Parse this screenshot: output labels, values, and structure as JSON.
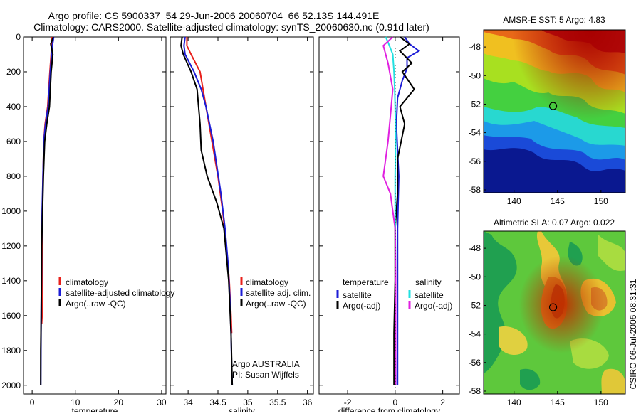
{
  "header": {
    "line1": "Argo profile: CS 5900337_54 29-Jun-2006 20060704_66 52.13S 144.491E",
    "line2": "Climatology: CARS2000. Satellite-adjusted climatology: synTS_20060630.nc (0.91d later)"
  },
  "footer_stamp": "CSIRO 06-Jul-2006 08:31:31",
  "colors": {
    "climatology": "#e8201b",
    "satellite": "#1c1cd6",
    "argo": "#000000",
    "sat_salinity": "#22e0e0",
    "argo_salinity": "#e020e0"
  },
  "chart_data": [
    {
      "id": "temperature",
      "type": "line",
      "xlabel": "temperature",
      "ylabel": "",
      "xlim": [
        -2,
        31
      ],
      "ylim": [
        0,
        2050
      ],
      "y_reversed": true,
      "xticks": [
        0,
        10,
        20,
        30
      ],
      "yticks": [
        0,
        200,
        400,
        600,
        800,
        1000,
        1200,
        1400,
        1600,
        1800,
        2000
      ],
      "legend": [
        "climatology",
        "satellite-adjusted climatology",
        "Argo(..raw -QC)"
      ],
      "series": [
        {
          "name": "climatology",
          "color": "#e8201b",
          "x": [
            4.6,
            4.4,
            4.1,
            3.6,
            3.0,
            2.7,
            2.5,
            2.4,
            2.3,
            2.3,
            2.2
          ],
          "y": [
            0,
            100,
            200,
            400,
            500,
            600,
            800,
            1000,
            1200,
            1600,
            1650
          ]
        },
        {
          "name": "satellite-adjusted climatology",
          "color": "#1c1cd6",
          "x": [
            5.0,
            4.7,
            4.5,
            4.2,
            3.7,
            3.1,
            2.7,
            2.5,
            2.3,
            2.2,
            2.1,
            2.05,
            2.0
          ],
          "y": [
            0,
            50,
            100,
            200,
            400,
            500,
            600,
            800,
            1000,
            1200,
            1600,
            1800,
            2000
          ]
        },
        {
          "name": "Argo(..raw -QC)",
          "color": "#000000",
          "x": [
            4.9,
            4.3,
            4.8,
            4.4,
            4.0,
            3.4,
            2.9,
            2.6,
            2.4,
            2.2,
            2.1,
            2.0,
            2.0
          ],
          "y": [
            0,
            40,
            100,
            200,
            400,
            500,
            600,
            800,
            1000,
            1200,
            1600,
            1800,
            2000
          ]
        }
      ]
    },
    {
      "id": "salinity",
      "type": "line",
      "xlabel": "salinity",
      "ylabel": "",
      "xlim": [
        33.7,
        36.1
      ],
      "ylim": [
        0,
        2050
      ],
      "y_reversed": true,
      "xticks": [
        34,
        34.5,
        35,
        35.5,
        36
      ],
      "legend": [
        "climatology",
        "satellite adj. clim.",
        "Argo(..raw -QC)"
      ],
      "annotations": [
        "Argo AUSTRALIA",
        "PI: Susan Wijffels"
      ],
      "series": [
        {
          "name": "climatology",
          "color": "#e8201b",
          "x": [
            33.98,
            33.98,
            34.05,
            34.2,
            34.3,
            34.4,
            34.5,
            34.58,
            34.64,
            34.69,
            34.72,
            34.73
          ],
          "y": [
            0,
            50,
            100,
            200,
            400,
            600,
            800,
            1000,
            1200,
            1400,
            1600,
            1700
          ]
        },
        {
          "name": "satellite adj. clim.",
          "color": "#1c1cd6",
          "x": [
            33.95,
            33.93,
            33.95,
            34.1,
            34.22,
            34.3,
            34.42,
            34.55,
            34.62,
            34.67,
            34.7,
            34.72,
            34.73,
            34.74
          ],
          "y": [
            0,
            50,
            100,
            200,
            300,
            400,
            600,
            900,
            1100,
            1300,
            1500,
            1700,
            1900,
            2000
          ]
        },
        {
          "name": "Argo(..raw -QC)",
          "color": "#000000",
          "x": [
            33.9,
            33.88,
            33.92,
            34.05,
            34.15,
            34.2,
            34.22,
            34.32,
            34.48,
            34.6,
            34.68,
            34.72,
            34.74
          ],
          "y": [
            0,
            50,
            100,
            200,
            300,
            500,
            650,
            800,
            950,
            1100,
            1400,
            1700,
            2000
          ]
        }
      ]
    },
    {
      "id": "difference",
      "type": "line",
      "xlabel": "difference from climatology",
      "ylabel": "",
      "xlim": [
        -3.2,
        2.7
      ],
      "ylim": [
        0,
        2050
      ],
      "y_reversed": true,
      "xticks": [
        -2,
        0,
        2
      ],
      "legend_temperature": {
        "heading": "temperature",
        "items": [
          "satellite",
          "Argo(-adj)"
        ]
      },
      "legend_salinity": {
        "heading": "salinity",
        "items": [
          "satellite",
          "Argo(-adj)"
        ]
      },
      "series": [
        {
          "name": "satellite (temperature)",
          "color": "#1c1cd6",
          "x": [
            0.4,
            0.6,
            1.0,
            0.5,
            0.5,
            0.3,
            0.1,
            0.05,
            0.1,
            0.15,
            0.1,
            0.1,
            0.1,
            0.1
          ],
          "y": [
            0,
            40,
            80,
            120,
            180,
            250,
            350,
            500,
            650,
            800,
            1100,
            1400,
            1700,
            2000
          ]
        },
        {
          "name": "Argo(-adj) (temperature)",
          "color": "#000000",
          "x": [
            0.2,
            0.6,
            0.2,
            0.7,
            0.3,
            0.8,
            0.2,
            0.4,
            0.1,
            0.1,
            0.0,
            0.0,
            -0.05,
            -0.05
          ],
          "y": [
            0,
            40,
            80,
            150,
            200,
            300,
            400,
            500,
            700,
            900,
            1100,
            1400,
            1700,
            2000
          ]
        },
        {
          "name": "satellite (salinity)",
          "color": "#22e0e0",
          "x": [
            -0.4,
            -0.3,
            -0.1,
            -0.05,
            -0.02,
            0.0,
            0.02,
            0.0,
            0.0,
            0.01,
            0.02,
            0.02,
            0.03
          ],
          "y": [
            0,
            30,
            100,
            200,
            300,
            400,
            600,
            800,
            1000,
            1200,
            1500,
            1800,
            2000
          ]
        },
        {
          "name": "Argo(-adj) (salinity)",
          "color": "#e020e0",
          "x": [
            -0.1,
            -0.5,
            -0.3,
            -0.1,
            -0.2,
            -0.3,
            -0.5,
            -0.2,
            -0.1,
            0.0,
            0.02,
            0.02,
            0.02
          ],
          "y": [
            0,
            50,
            150,
            300,
            450,
            600,
            800,
            900,
            1000,
            1100,
            1400,
            1700,
            2000
          ]
        }
      ]
    },
    {
      "id": "sst_map",
      "type": "heatmap",
      "title": "AMSR-E SST: 5 Argo: 4.83",
      "xlim": [
        136.5,
        152.8
      ],
      "ylim": [
        -58.2,
        -46.8
      ],
      "xticks": [
        140,
        145,
        150
      ],
      "yticks": [
        -48,
        -50,
        -52,
        -54,
        -56,
        -58
      ],
      "marker": {
        "lon": 144.491,
        "lat": -52.13
      }
    },
    {
      "id": "sla_map",
      "type": "heatmap",
      "title": "Altimetric SLA: 0.07 Argo: 0.022",
      "xlim": [
        136.5,
        152.8
      ],
      "ylim": [
        -58.2,
        -46.8
      ],
      "xticks": [
        140,
        145,
        150
      ],
      "yticks": [
        -48,
        -50,
        -52,
        -54,
        -56,
        -58
      ],
      "marker": {
        "lon": 144.491,
        "lat": -52.13
      }
    }
  ]
}
